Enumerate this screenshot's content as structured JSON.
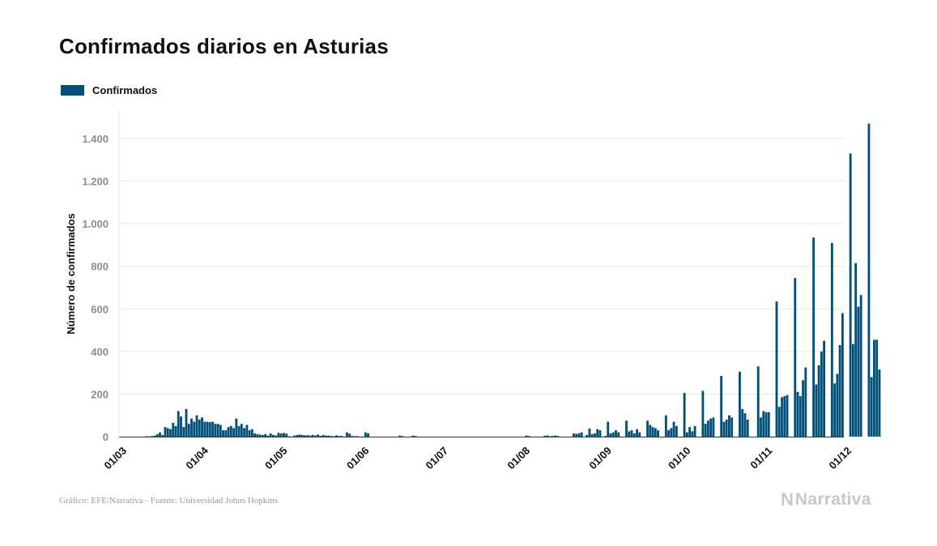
{
  "title": "Confirmados diarios en Asturias",
  "legend": {
    "label": "Confirmados"
  },
  "colors": {
    "bar": "#00507a",
    "grid": "#e6e6e6",
    "ytick": "#8c8c8c",
    "brand": "#c7c7c7"
  },
  "footer": {
    "source": "Gráfico: EFE/Narrativa - Fuente: Universidad Johns Hopkins"
  },
  "brand": {
    "icon": "narrativa-logo-icon",
    "mark": "N",
    "name": "Narrativa"
  },
  "chart_data": {
    "type": "bar",
    "ylabel": "Número de confirmados",
    "ylim": [
      0,
      1520
    ],
    "yticks": [
      0,
      200,
      400,
      600,
      800,
      1000,
      1200,
      1400
    ],
    "ytick_labels": [
      "0",
      "200",
      "400",
      "600",
      "800",
      "1.000",
      "1.200",
      "1.400"
    ],
    "xticks": [
      "01/03",
      "01/04",
      "01/05",
      "01/06",
      "01/07",
      "01/08",
      "01/09",
      "01/10",
      "01/11",
      "01/12"
    ],
    "x_start": "2020-03-01",
    "x_end": "2020-12-01",
    "grid": true,
    "legend_position": "top-left",
    "series": [
      {
        "name": "Confirmados",
        "start_date": "2020-03-01",
        "values": [
          0,
          0,
          0,
          0,
          0,
          0,
          0,
          0,
          0,
          0,
          2,
          1,
          3,
          5,
          12,
          20,
          8,
          45,
          40,
          35,
          65,
          50,
          120,
          95,
          45,
          130,
          60,
          85,
          70,
          100,
          80,
          90,
          70,
          70,
          68,
          70,
          60,
          60,
          55,
          30,
          30,
          45,
          50,
          40,
          85,
          50,
          60,
          40,
          55,
          30,
          35,
          15,
          12,
          10,
          8,
          12,
          5,
          15,
          8,
          5,
          18,
          15,
          17,
          14,
          2,
          0,
          5,
          8,
          10,
          8,
          6,
          7,
          5,
          8,
          5,
          10,
          4,
          8,
          5,
          5,
          3,
          2,
          6,
          3,
          3,
          0,
          20,
          14,
          3,
          2,
          2,
          0,
          0,
          20,
          16,
          0,
          0,
          0,
          0,
          0,
          0,
          0,
          0,
          0,
          0,
          0,
          5,
          3,
          0,
          0,
          0,
          5,
          3,
          0,
          0,
          0,
          0,
          0,
          0,
          0,
          0,
          0,
          0,
          0,
          0,
          0,
          0,
          0,
          0,
          0,
          0,
          0,
          0,
          0,
          0,
          0,
          0,
          0,
          0,
          0,
          0,
          0,
          0,
          0,
          0,
          0,
          0,
          0,
          0,
          0,
          0,
          0,
          0,
          0,
          5,
          3,
          0,
          0,
          0,
          0,
          0,
          4,
          6,
          2,
          3,
          5,
          3,
          0,
          0,
          0,
          0,
          0,
          15,
          13,
          16,
          20,
          0,
          8,
          38,
          12,
          15,
          35,
          30,
          0,
          3,
          70,
          15,
          20,
          30,
          20,
          0,
          0,
          75,
          25,
          30,
          15,
          35,
          20,
          0,
          0,
          75,
          55,
          45,
          40,
          30,
          0,
          0,
          100,
          30,
          40,
          70,
          50,
          0,
          0,
          205,
          20,
          45,
          25,
          50,
          0,
          0,
          215,
          60,
          75,
          85,
          90,
          0,
          0,
          285,
          70,
          80,
          100,
          90,
          0,
          0,
          305,
          130,
          110,
          80,
          0,
          0,
          0,
          330,
          90,
          120,
          115,
          115,
          0,
          0,
          635,
          140,
          185,
          190,
          195,
          0,
          0,
          745,
          210,
          190,
          265,
          325,
          0,
          0,
          935,
          245,
          335,
          400,
          450,
          0,
          0,
          910,
          250,
          295,
          430,
          580,
          0,
          0,
          1330,
          435,
          815,
          610,
          665,
          0,
          0,
          1470,
          280,
          455,
          455,
          315
        ]
      }
    ]
  }
}
